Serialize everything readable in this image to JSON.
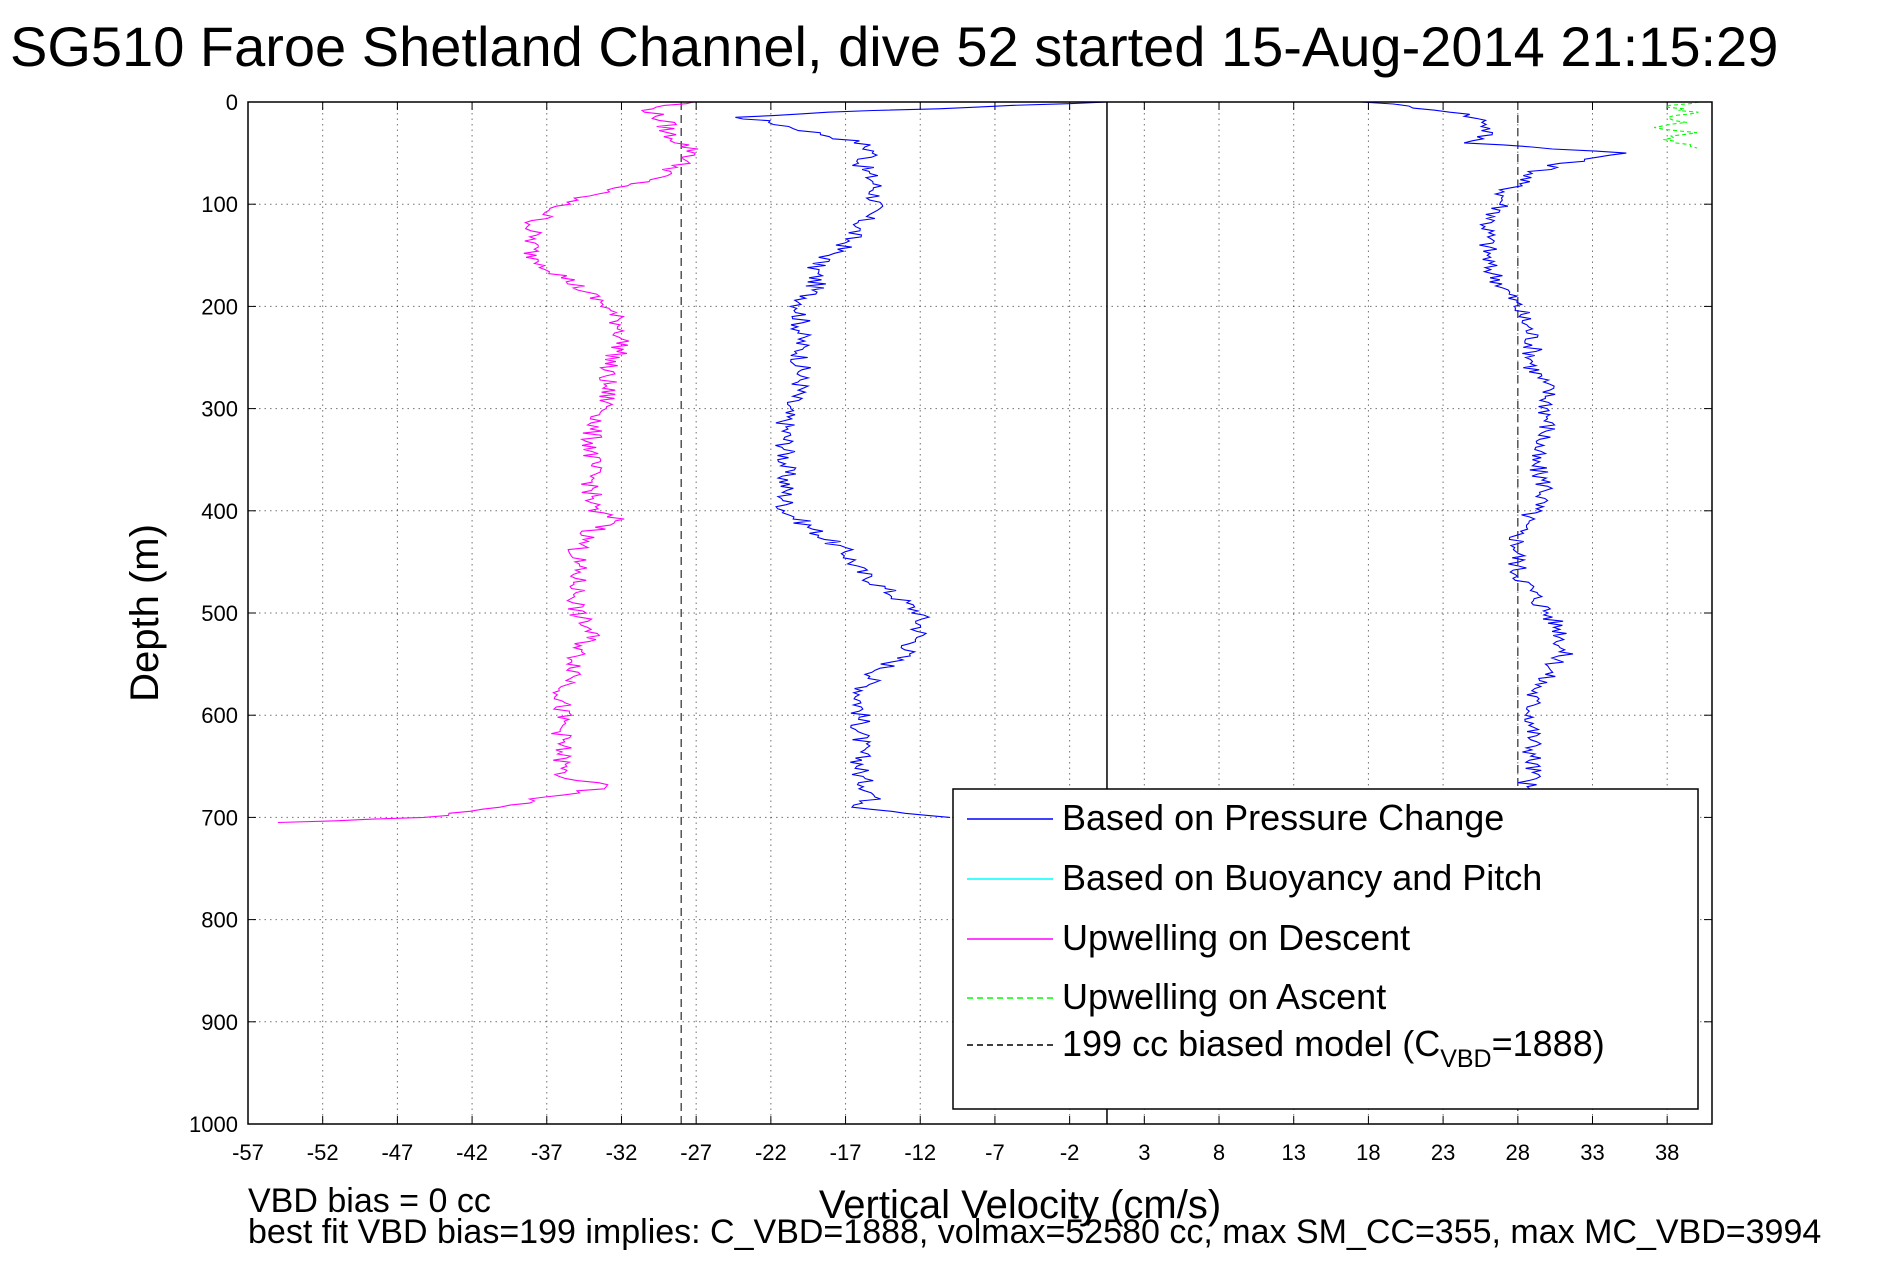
{
  "chart_data": {
    "type": "line",
    "title": "SG510 Faroe Shetland Channel, dive 52 started 15-Aug-2014 21:15:29",
    "xlabel": "Vertical Velocity (cm/s)",
    "ylabel": "Depth (m)",
    "xlim": [
      -57,
      41
    ],
    "ylim": [
      0,
      1000
    ],
    "y_reversed": true,
    "x_ticks": [
      -57,
      -52,
      -47,
      -42,
      -37,
      -32,
      -27,
      -22,
      -17,
      -12,
      -7,
      -2,
      3,
      8,
      13,
      18,
      23,
      28,
      33,
      38
    ],
    "y_ticks": [
      0,
      100,
      200,
      300,
      400,
      500,
      600,
      700,
      800,
      900,
      1000
    ],
    "x_tick_labels": [
      "-57",
      "-52",
      "-47",
      "-42",
      "-37",
      "-32",
      "-27",
      "-22",
      "-17",
      "-12",
      "-7",
      "-2",
      "3",
      "8",
      "13",
      "18",
      "23",
      "28",
      "33",
      "38"
    ],
    "y_tick_labels": [
      "0",
      "100",
      "200",
      "300",
      "400",
      "500",
      "600",
      "700",
      "800",
      "900",
      "1000"
    ],
    "grid": true,
    "legend_position": "bottom-right",
    "legend": [
      {
        "label": "Based on Pressure Change",
        "color": "#0000ff",
        "dash": "solid"
      },
      {
        "label": "Based on Buoyancy and Pitch",
        "color": "#00ffff",
        "dash": "solid"
      },
      {
        "label": "Upwelling on Descent",
        "color": "#ff00ff",
        "dash": "solid"
      },
      {
        "label": "Upwelling on Ascent",
        "color": "#00ff00",
        "dash": "dashed"
      },
      {
        "label_prefix": "199 cc biased model (C",
        "label_sub": "VBD",
        "label_suffix": "=1888)",
        "color": "#000000",
        "dash": "dashed"
      }
    ],
    "vertical_lines": [
      {
        "x": -28,
        "style": "dashed",
        "color": "#555555"
      },
      {
        "x": 28,
        "style": "dashed",
        "color": "#555555"
      },
      {
        "x": 0.5,
        "style": "solid",
        "color": "#000000"
      }
    ],
    "series": [
      {
        "name": "Based on Pressure Change",
        "color": "#0000ff",
        "depth": [
          0,
          5,
          10,
          15,
          20,
          30,
          40,
          50,
          60,
          80,
          100,
          120,
          140,
          160,
          180,
          200,
          230,
          260,
          280,
          300,
          320,
          350,
          380,
          400,
          420,
          440,
          460,
          470,
          480,
          490,
          500,
          520,
          540,
          560,
          580,
          600,
          620,
          640,
          660,
          680,
          690,
          700
        ],
        "values": [
          0,
          -8,
          -18,
          -24,
          -22,
          -19,
          -16,
          -15,
          -16,
          -15,
          -15,
          -16,
          -17,
          -19,
          -19,
          -20,
          -20,
          -20,
          -20,
          -21,
          -21,
          -21,
          -21,
          -21,
          -19,
          -17,
          -16,
          -15,
          -14,
          -13,
          -12,
          -12,
          -13,
          -15,
          -16,
          -16,
          -16,
          -16,
          -16,
          -15,
          -16,
          -10
        ]
      },
      {
        "name": "Based on Pressure Change",
        "color": "#0000ff",
        "depth": [
          0,
          10,
          20,
          30,
          40,
          50,
          60,
          70,
          80,
          90,
          100,
          120,
          140,
          160,
          180,
          200,
          230,
          260,
          280,
          300,
          320,
          350,
          380,
          400,
          420,
          440,
          460,
          480,
          500,
          520,
          540,
          560,
          580,
          600,
          620,
          640,
          660,
          680,
          700
        ],
        "values": [
          18,
          24,
          26,
          26,
          25,
          35,
          31,
          29,
          28,
          27,
          27,
          26,
          26,
          26,
          27,
          28,
          29,
          29,
          30,
          30,
          30,
          29,
          30,
          29,
          28,
          28,
          28,
          29,
          30,
          31,
          31,
          30,
          29,
          29,
          29,
          29,
          29,
          28,
          27
        ]
      },
      {
        "name": "Upwelling on Descent",
        "color": "#ff00ff",
        "depth": [
          0,
          5,
          10,
          20,
          30,
          40,
          50,
          60,
          70,
          80,
          90,
          100,
          110,
          120,
          130,
          140,
          150,
          160,
          170,
          180,
          190,
          200,
          220,
          240,
          260,
          280,
          300,
          320,
          340,
          360,
          380,
          400,
          410,
          420,
          440,
          460,
          480,
          500,
          520,
          540,
          560,
          580,
          600,
          620,
          640,
          660,
          670,
          680,
          690,
          700,
          705
        ],
        "values": [
          -27,
          -30,
          -30,
          -29,
          -29,
          -28,
          -27,
          -28,
          -29,
          -31,
          -34,
          -36,
          -37,
          -38,
          -38,
          -38,
          -38,
          -37,
          -36,
          -35,
          -34,
          -33,
          -32,
          -32,
          -33,
          -33,
          -33,
          -34,
          -34,
          -34,
          -34,
          -34,
          -32,
          -34,
          -35,
          -35,
          -35,
          -35,
          -34,
          -35,
          -35,
          -36,
          -36,
          -36,
          -36,
          -36,
          -33,
          -37,
          -40,
          -45,
          -55
        ]
      },
      {
        "name": "Upwelling on Ascent",
        "color": "#00ff00",
        "dashed": true,
        "depth": [
          0,
          5,
          10,
          15,
          20,
          25,
          30,
          35,
          40,
          45
        ],
        "values": [
          40,
          38,
          40,
          38,
          39,
          37,
          40,
          38,
          39,
          40
        ]
      }
    ],
    "notes": [
      "VBD bias = 0 cc",
      "best fit VBD bias=199 implies: C_VBD=1888, volmax=52580 cc, max SM_CC=355, max MC_VBD=3994"
    ]
  }
}
